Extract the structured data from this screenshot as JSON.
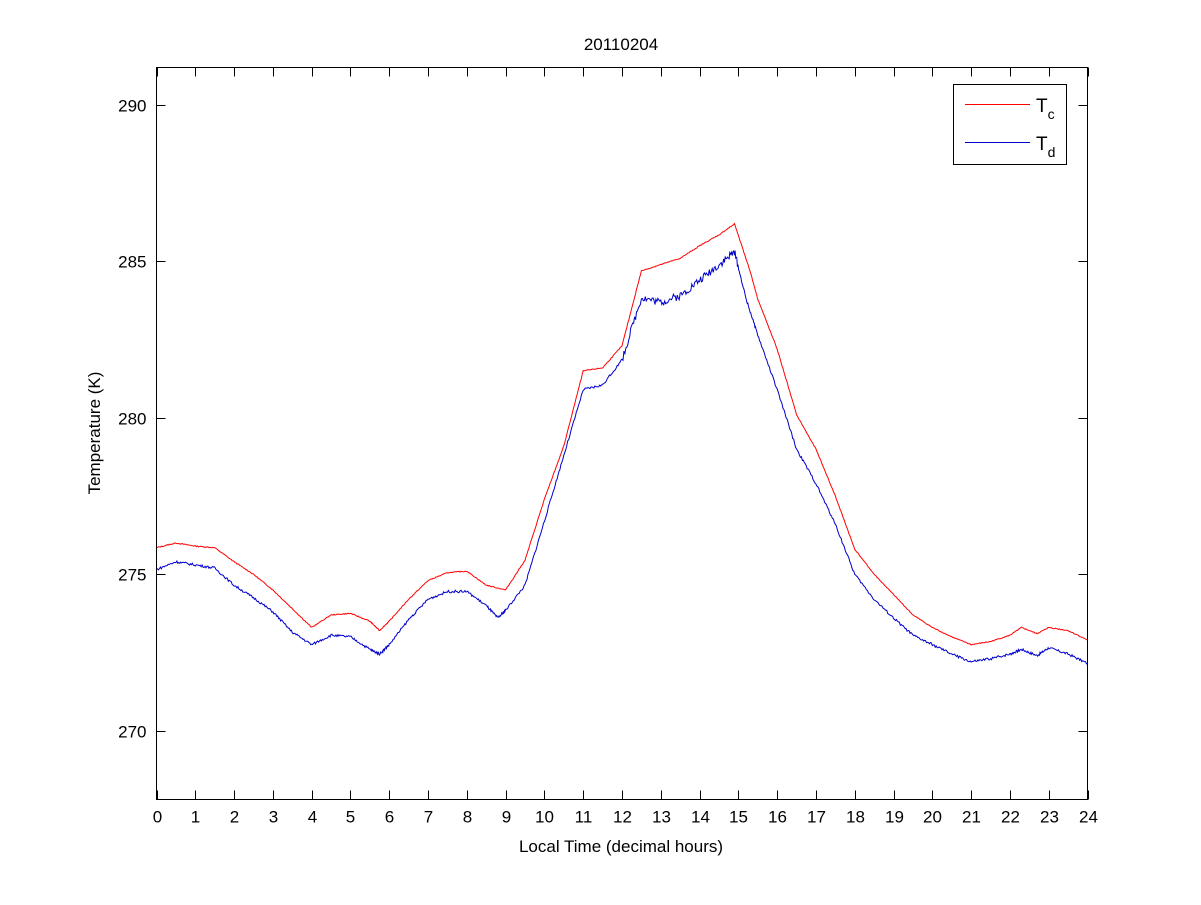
{
  "chart_data": {
    "type": "line",
    "title": "20110204",
    "xlabel": "Local Time (decimal hours)",
    "ylabel": "Temperature (K)",
    "xlim": [
      0,
      24
    ],
    "ylim": [
      267.8,
      291.2
    ],
    "xticks": [
      0,
      1,
      2,
      3,
      4,
      5,
      6,
      7,
      8,
      9,
      10,
      11,
      12,
      13,
      14,
      15,
      16,
      17,
      18,
      19,
      20,
      21,
      22,
      23,
      24
    ],
    "yticks": [
      270,
      275,
      280,
      285,
      290
    ],
    "grid": false,
    "legend_position": "top-right",
    "series": [
      {
        "name": "T",
        "subscript": "c",
        "color": "#ff0000",
        "x": [
          0,
          0.5,
          1,
          1.5,
          2,
          2.5,
          3,
          3.5,
          4,
          4.5,
          5,
          5.5,
          5.75,
          6,
          6.5,
          7,
          7.5,
          8,
          8.5,
          9,
          9.5,
          10,
          10.5,
          11,
          11.5,
          12,
          12.5,
          13,
          13.5,
          14,
          14.5,
          14.9,
          15.3,
          15.5,
          16,
          16.5,
          17,
          17.5,
          18,
          18.5,
          19,
          19.5,
          20,
          20.5,
          21,
          21.5,
          22,
          22.3,
          22.7,
          23,
          23.5,
          24
        ],
        "y": [
          275.85,
          276.0,
          275.9,
          275.85,
          275.4,
          275.0,
          274.5,
          273.9,
          273.3,
          273.7,
          273.75,
          273.5,
          273.2,
          273.5,
          274.2,
          274.8,
          275.05,
          275.1,
          274.65,
          274.5,
          275.45,
          277.4,
          279.1,
          281.5,
          281.6,
          282.3,
          284.7,
          284.9,
          285.1,
          285.5,
          285.85,
          286.2,
          284.7,
          283.8,
          282.2,
          280.1,
          279.0,
          277.5,
          275.8,
          275.0,
          274.35,
          273.7,
          273.3,
          273.0,
          272.75,
          272.85,
          273.05,
          273.3,
          273.1,
          273.3,
          273.2,
          272.9
        ]
      },
      {
        "name": "T",
        "subscript": "d",
        "color": "#0000cc",
        "x": [
          0,
          0.5,
          1,
          1.5,
          2,
          2.5,
          3,
          3.5,
          4,
          4.5,
          5,
          5.5,
          5.75,
          6,
          6.5,
          7,
          7.5,
          8,
          8.5,
          8.8,
          9,
          9.5,
          10,
          10.5,
          11,
          11.5,
          12,
          12.5,
          13,
          13.5,
          14,
          14.5,
          14.9,
          15.2,
          15.5,
          16,
          16.5,
          17,
          17.5,
          18,
          18.5,
          19,
          19.5,
          20,
          20.5,
          21,
          21.5,
          22,
          22.3,
          22.7,
          23,
          23.5,
          24
        ],
        "y": [
          275.15,
          275.4,
          275.3,
          275.2,
          274.65,
          274.25,
          273.8,
          273.15,
          272.75,
          273.05,
          273.0,
          272.6,
          272.45,
          272.75,
          273.55,
          274.2,
          274.45,
          274.45,
          274.0,
          273.6,
          273.85,
          274.65,
          276.7,
          278.8,
          280.9,
          281.05,
          281.85,
          283.85,
          283.7,
          283.9,
          284.4,
          284.9,
          285.3,
          283.8,
          282.65,
          280.9,
          279.0,
          277.9,
          276.6,
          275.0,
          274.2,
          273.6,
          273.05,
          272.75,
          272.45,
          272.2,
          272.3,
          272.45,
          272.6,
          272.4,
          272.65,
          272.45,
          272.15
        ]
      }
    ]
  }
}
